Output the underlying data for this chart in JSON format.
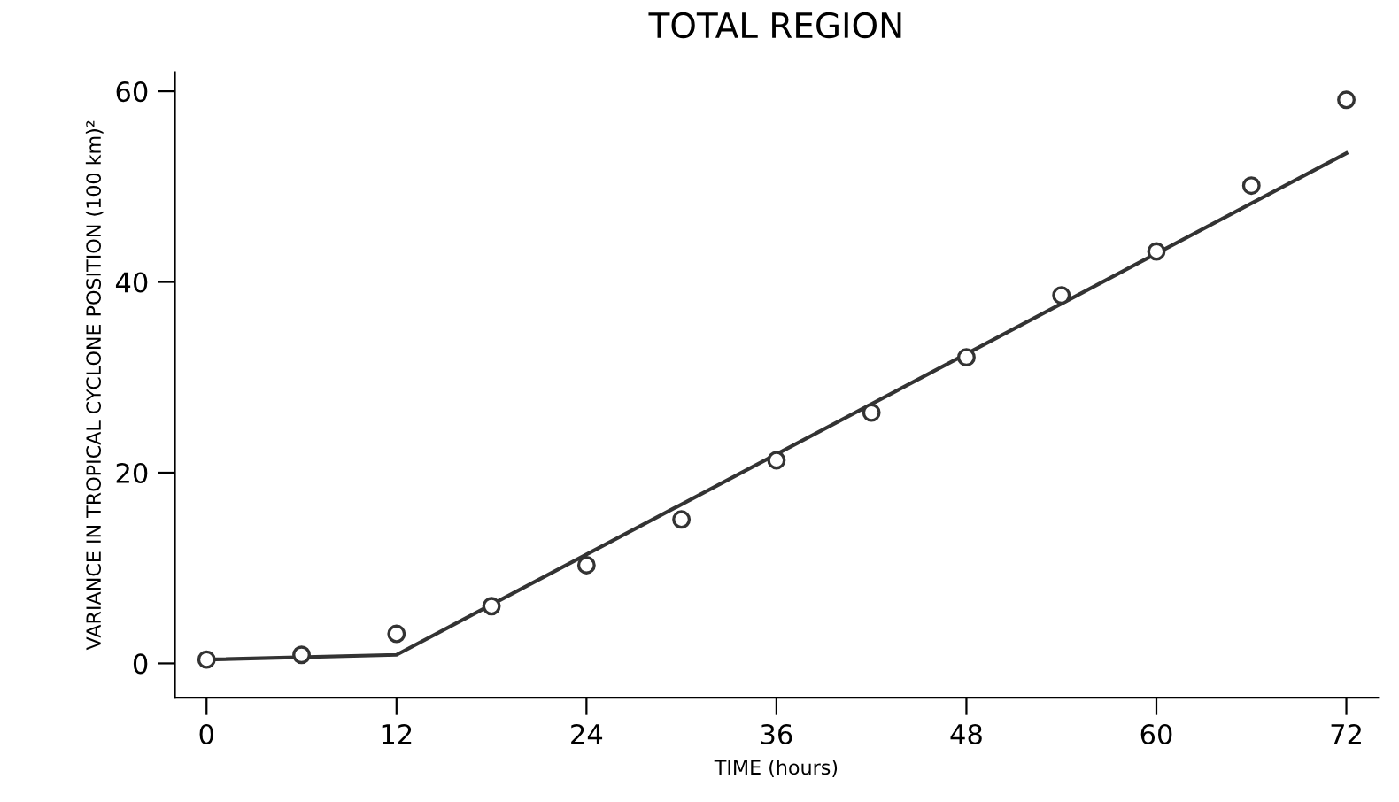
{
  "chart_data": {
    "type": "scatter",
    "title": "TOTAL REGION",
    "xlabel": "TIME (hours)",
    "ylabel": "VARIANCE IN TROPICAL CYCLONE POSITION (100 km)²",
    "x": [
      0,
      6,
      12,
      18,
      24,
      30,
      36,
      42,
      48,
      54,
      60,
      66,
      72
    ],
    "series": [
      {
        "color": "#333333",
        "marker": "circle",
        "values": [
          0.4,
          0.9,
          3.1,
          6.0,
          10.3,
          15.1,
          21.3,
          26.3,
          32.1,
          38.6,
          43.2,
          50.1,
          59.1
        ]
      },
      {
        "type": "line",
        "color": "#333333",
        "x": [
          0,
          12,
          72
        ],
        "values": [
          0.4,
          0.9,
          53.5
        ],
        "marker": "none",
        "line_style": "solid"
      }
    ],
    "xlim": [
      -2,
      74
    ],
    "ylim": [
      -3.6,
      62
    ],
    "xticks": [
      0,
      12,
      24,
      36,
      48,
      60,
      72
    ],
    "yticks": [
      0,
      20,
      40,
      60
    ],
    "grid": false,
    "legend": false
  }
}
